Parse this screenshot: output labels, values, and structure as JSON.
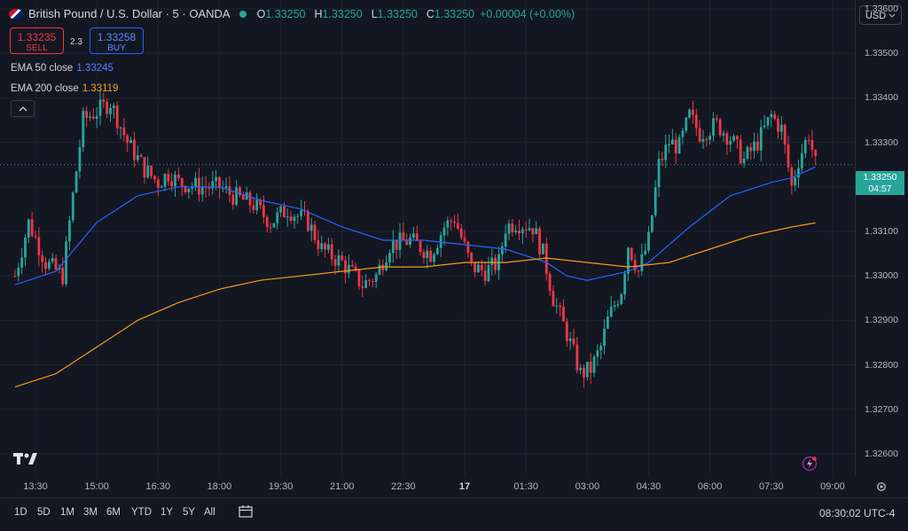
{
  "header": {
    "title": "British Pound / U.S. Dollar · 5 · OANDA",
    "o_label": "O",
    "o": "1.33250",
    "h_label": "H",
    "h": "1.33250",
    "l_label": "L",
    "l": "1.33250",
    "c_label": "C",
    "c": "1.33250",
    "change": "+0.00004 (+0.00%)"
  },
  "trade": {
    "sell_price": "1.33235",
    "sell_label": "SELL",
    "spread": "2.3",
    "buy_price": "1.33258",
    "buy_label": "BUY"
  },
  "indicators": [
    {
      "label": "EMA 50 close",
      "value": "1.33245",
      "color": "#2962ff"
    },
    {
      "label": "EMA 200 close",
      "value": "1.33119",
      "color": "#f59c1a"
    }
  ],
  "collapse_icon": "chevron-up-icon",
  "currency": "USD",
  "price_scale": [
    "1.33600",
    "1.33500",
    "1.33400",
    "1.33300",
    "1.33200",
    "1.33100",
    "1.33000",
    "1.32900",
    "1.32800",
    "1.32700",
    "1.32600"
  ],
  "current": {
    "price": "1.33250",
    "countdown": "04:57",
    "color": "#26a69a"
  },
  "time_labels": [
    "13:30",
    "15:00",
    "16:30",
    "18:00",
    "19:30",
    "21:00",
    "22:30",
    "17",
    "01:30",
    "03:00",
    "04:30",
    "06:00",
    "07:30",
    "09:00"
  ],
  "ranges": [
    "1D",
    "5D",
    "1M",
    "3M",
    "6M",
    "YTD",
    "1Y",
    "5Y",
    "All"
  ],
  "clock": "08:30:02 UTC-4",
  "colors": {
    "up": "#26a69a",
    "down": "#f23645",
    "ema50": "#2962ff",
    "ema200": "#f59c1a",
    "bg": "#131722"
  },
  "chart_data": {
    "type": "candlestick",
    "title": "British Pound / U.S. Dollar · 5 · OANDA",
    "interval": "5 minutes",
    "ylim": [
      1.3255,
      1.3362
    ],
    "y_ticks": [
      1.326,
      1.327,
      1.328,
      1.329,
      1.33,
      1.331,
      1.332,
      1.333,
      1.334,
      1.335,
      1.336
    ],
    "x_range": [
      "13:00",
      "09:30"
    ],
    "anchors": [
      [
        "13:00",
        1.33
      ],
      [
        "13:20",
        1.3312
      ],
      [
        "13:45",
        1.3303
      ],
      [
        "14:10",
        1.33
      ],
      [
        "14:25",
        1.3318
      ],
      [
        "14:40",
        1.3335
      ],
      [
        "15:00",
        1.3337
      ],
      [
        "15:20",
        1.3339
      ],
      [
        "15:45",
        1.333
      ],
      [
        "16:10",
        1.3324
      ],
      [
        "16:30",
        1.3321
      ],
      [
        "16:45",
        1.3323
      ],
      [
        "17:00",
        1.3321
      ],
      [
        "17:30",
        1.332
      ],
      [
        "18:00",
        1.332
      ],
      [
        "18:20",
        1.3318
      ],
      [
        "18:50",
        1.3316
      ],
      [
        "19:15",
        1.3312
      ],
      [
        "19:40",
        1.3315
      ],
      [
        "20:10",
        1.3312
      ],
      [
        "20:30",
        1.3306
      ],
      [
        "21:00",
        1.3303
      ],
      [
        "21:30",
        1.3298
      ],
      [
        "21:50",
        1.33
      ],
      [
        "22:10",
        1.3307
      ],
      [
        "22:40",
        1.3308
      ],
      [
        "23:10",
        1.3305
      ],
      [
        "23:30",
        1.3311
      ],
      [
        "23:45",
        1.3313
      ],
      [
        "00:10",
        1.3302
      ],
      [
        "00:30",
        1.3301
      ],
      [
        "00:50",
        1.3303
      ],
      [
        "01:00",
        1.3311
      ],
      [
        "01:15",
        1.3312
      ],
      [
        "01:40",
        1.3311
      ],
      [
        "01:55",
        1.3305
      ],
      [
        "02:10",
        1.3295
      ],
      [
        "02:30",
        1.3287
      ],
      [
        "02:50",
        1.3278
      ],
      [
        "03:05",
        1.3279
      ],
      [
        "03:20",
        1.3284
      ],
      [
        "03:30",
        1.329
      ],
      [
        "03:50",
        1.3297
      ],
      [
        "04:00",
        1.3307
      ],
      [
        "04:15",
        1.3301
      ],
      [
        "04:30",
        1.3308
      ],
      [
        "04:45",
        1.3325
      ],
      [
        "05:00",
        1.333
      ],
      [
        "05:15",
        1.3329
      ],
      [
        "05:30",
        1.3336
      ],
      [
        "05:45",
        1.3332
      ],
      [
        "06:10",
        1.3334
      ],
      [
        "06:30",
        1.3331
      ],
      [
        "06:50",
        1.3326
      ],
      [
        "07:10",
        1.333
      ],
      [
        "07:30",
        1.3336
      ],
      [
        "07:45",
        1.3333
      ],
      [
        "08:00",
        1.332
      ],
      [
        "08:10",
        1.3326
      ],
      [
        "08:25",
        1.3332
      ],
      [
        "08:35",
        1.3325
      ]
    ],
    "series": [
      {
        "name": "EMA 50 close",
        "points": [
          [
            "13:00",
            1.3298
          ],
          [
            "14:00",
            1.3301
          ],
          [
            "15:00",
            1.3312
          ],
          [
            "16:00",
            1.3318
          ],
          [
            "17:00",
            1.332
          ],
          [
            "18:00",
            1.332
          ],
          [
            "19:00",
            1.3317
          ],
          [
            "20:00",
            1.3315
          ],
          [
            "21:00",
            1.3311
          ],
          [
            "22:00",
            1.3308
          ],
          [
            "23:00",
            1.3308
          ],
          [
            "00:00",
            1.3307
          ],
          [
            "01:00",
            1.3306
          ],
          [
            "02:00",
            1.3303
          ],
          [
            "02:30",
            1.33
          ],
          [
            "03:00",
            1.3299
          ],
          [
            "03:30",
            1.33
          ],
          [
            "04:00",
            1.3301
          ],
          [
            "04:30",
            1.3303
          ],
          [
            "05:30",
            1.3311
          ],
          [
            "06:30",
            1.3318
          ],
          [
            "07:30",
            1.3321
          ],
          [
            "08:00",
            1.3322
          ],
          [
            "08:35",
            1.33245
          ]
        ]
      },
      {
        "name": "EMA 200 close",
        "points": [
          [
            "13:00",
            1.3275
          ],
          [
            "14:00",
            1.3278
          ],
          [
            "15:00",
            1.3284
          ],
          [
            "16:00",
            1.329
          ],
          [
            "17:00",
            1.3294
          ],
          [
            "18:00",
            1.3297
          ],
          [
            "19:00",
            1.3299
          ],
          [
            "20:00",
            1.33
          ],
          [
            "21:00",
            1.3301
          ],
          [
            "22:00",
            1.3302
          ],
          [
            "23:00",
            1.3302
          ],
          [
            "00:00",
            1.3303
          ],
          [
            "01:00",
            1.3303
          ],
          [
            "02:00",
            1.3304
          ],
          [
            "03:00",
            1.3303
          ],
          [
            "04:00",
            1.3302
          ],
          [
            "05:00",
            1.3303
          ],
          [
            "06:00",
            1.3306
          ],
          [
            "07:00",
            1.3309
          ],
          [
            "08:00",
            1.3311
          ],
          [
            "08:35",
            1.33119
          ]
        ]
      }
    ]
  }
}
